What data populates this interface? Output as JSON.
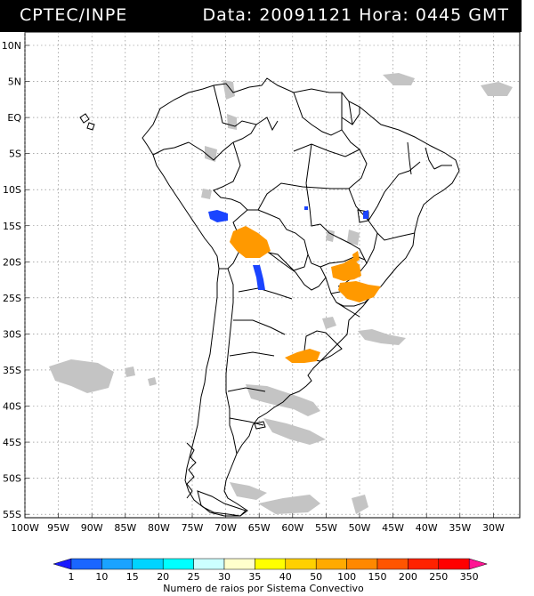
{
  "header": {
    "left_title": "CPTEC/INPE",
    "right_title": "Data: 20091121  Hora: 0445 GMT"
  },
  "map": {
    "lat_labels": [
      "10N",
      "5N",
      "EQ",
      "5S",
      "10S",
      "15S",
      "20S",
      "25S",
      "30S",
      "35S",
      "40S",
      "45S",
      "50S",
      "55S"
    ],
    "lon_labels": [
      "100W",
      "95W",
      "90W",
      "85W",
      "80W",
      "75W",
      "70W",
      "65W",
      "60W",
      "55W",
      "50W",
      "45W",
      "40W",
      "35W",
      "30W"
    ],
    "colors": {
      "cloud": "#c4c4c4",
      "orange": "#ff9900",
      "blue": "#1a44ff",
      "border": "#000000",
      "grid": "#7a7a7a"
    }
  },
  "legend": {
    "values": [
      "1",
      "10",
      "15",
      "20",
      "25",
      "30",
      "35",
      "40",
      "50",
      "100",
      "150",
      "200",
      "250",
      "350"
    ],
    "colors": [
      "#1a1aff",
      "#1a66ff",
      "#1aa3ff",
      "#00d4ff",
      "#00ffff",
      "#ccffff",
      "#ffffcc",
      "#ffff00",
      "#ffd000",
      "#ffaa00",
      "#ff8800",
      "#ff5500",
      "#ff2200",
      "#ff0000",
      "#ff1493"
    ],
    "caption": "Numero de raios por Sistema Convectivo"
  }
}
